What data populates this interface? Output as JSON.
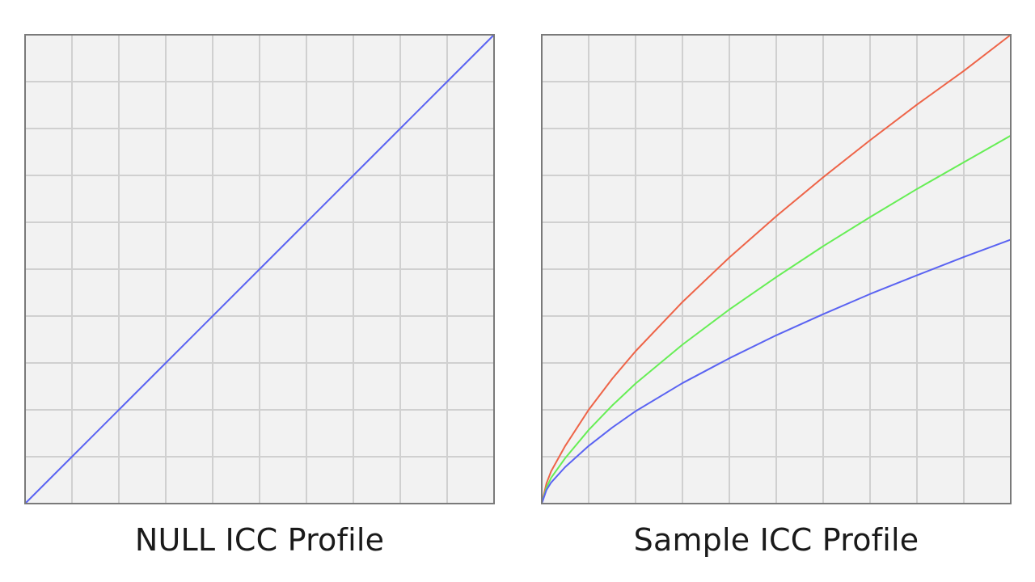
{
  "chart_data": [
    {
      "type": "line",
      "title": "NULL ICC Profile",
      "xlim": [
        0,
        1
      ],
      "ylim": [
        0,
        1
      ],
      "grid": true,
      "grid_divisions": 10,
      "colors": {
        "background": "#f2f2f2",
        "grid": "#d0d0d0",
        "border": "#7a7a7a"
      },
      "series": [
        {
          "color": "#5a63f2",
          "x": [
            0,
            0.1,
            0.2,
            0.3,
            0.4,
            0.5,
            0.6,
            0.7,
            0.8,
            0.9,
            1.0
          ],
          "y": [
            0,
            0.1,
            0.2,
            0.3,
            0.4,
            0.5,
            0.6,
            0.7,
            0.8,
            0.9,
            1.0
          ]
        }
      ]
    },
    {
      "type": "line",
      "title": "Sample ICC Profile",
      "xlim": [
        0,
        1
      ],
      "ylim": [
        0,
        1
      ],
      "grid": true,
      "grid_divisions": 10,
      "colors": {
        "background": "#f2f2f2",
        "grid": "#d0d0d0",
        "border": "#7a7a7a"
      },
      "series": [
        {
          "color": "#ee6448",
          "x": [
            0,
            0.01,
            0.02,
            0.05,
            0.1,
            0.15,
            0.2,
            0.3,
            0.4,
            0.5,
            0.6,
            0.7,
            0.8,
            0.9,
            1.0
          ],
          "y": [
            0,
            0.043,
            0.069,
            0.123,
            0.2,
            0.266,
            0.325,
            0.43,
            0.525,
            0.613,
            0.696,
            0.775,
            0.851,
            0.923,
            1.0
          ]
        },
        {
          "color": "#66ee55",
          "x": [
            0,
            0.01,
            0.02,
            0.05,
            0.1,
            0.15,
            0.2,
            0.3,
            0.4,
            0.5,
            0.6,
            0.7,
            0.8,
            0.9,
            1.0
          ],
          "y": [
            0,
            0.034,
            0.055,
            0.097,
            0.157,
            0.209,
            0.256,
            0.339,
            0.414,
            0.483,
            0.549,
            0.611,
            0.671,
            0.728,
            0.785
          ]
        },
        {
          "color": "#5a63f2",
          "x": [
            0,
            0.01,
            0.02,
            0.05,
            0.1,
            0.15,
            0.2,
            0.3,
            0.4,
            0.5,
            0.6,
            0.7,
            0.8,
            0.9,
            1.0
          ],
          "y": [
            0,
            0.029,
            0.045,
            0.078,
            0.123,
            0.162,
            0.197,
            0.257,
            0.31,
            0.359,
            0.404,
            0.447,
            0.487,
            0.526,
            0.563
          ]
        }
      ]
    }
  ]
}
